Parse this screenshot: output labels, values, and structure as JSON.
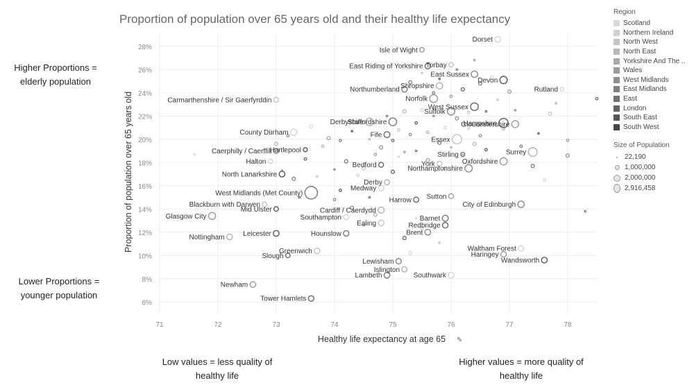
{
  "side_notes": {
    "top_left": "Higher Proportions = elderly population",
    "bottom_left": "Lower Proportions = younger population",
    "bottom_center": "Low values = less quality of healthy life",
    "bottom_right": "Higher values = more quality of healthy life"
  },
  "legend": {
    "region_title": "Region",
    "regions": [
      {
        "name": "Scotland",
        "color": "#d9d9d9"
      },
      {
        "name": "Northern Ireland",
        "color": "#d0d0d0"
      },
      {
        "name": "North West",
        "color": "#c4c4c4"
      },
      {
        "name": "North East",
        "color": "#b8b8b8"
      },
      {
        "name": "Yorkshire And The ..",
        "color": "#aaaaaa"
      },
      {
        "name": "Wales",
        "color": "#9c9c9c"
      },
      {
        "name": "West Midlands",
        "color": "#8e8e8e"
      },
      {
        "name": "East Midlands",
        "color": "#808080"
      },
      {
        "name": "East",
        "color": "#727272"
      },
      {
        "name": "London",
        "color": "#646464"
      },
      {
        "name": "South East",
        "color": "#555555"
      },
      {
        "name": "South West",
        "color": "#464646"
      }
    ],
    "size_title": "Size of Population",
    "sizes": [
      "22,190",
      "1,000,000",
      "2,000,000",
      "2,916,458"
    ]
  },
  "chart_data": {
    "type": "scatter",
    "title": "Proportion of population over 65 years old and their healthy life expectancy",
    "xlabel": "Healthy life expectancy at age 65",
    "ylabel": "Proportion of population over 65 years old",
    "xlim": [
      71,
      78.5
    ],
    "ylim": [
      5,
      29
    ],
    "x_ticks": [
      "71",
      "72",
      "73",
      "74",
      "75",
      "76",
      "77",
      "78"
    ],
    "y_ticks": [
      "6%",
      "8%",
      "10%",
      "12%",
      "14%",
      "16%",
      "18%",
      "20%",
      "22%",
      "24%",
      "26%",
      "28%"
    ],
    "grid": true,
    "labeled_points": [
      {
        "label": "Dorset",
        "x": 76.8,
        "y": 28.6,
        "size": 0.35
      },
      {
        "label": "Isle of Wight",
        "x": 75.5,
        "y": 27.7,
        "size": 0.15
      },
      {
        "label": "East Riding of Yorkshire",
        "x": 75.6,
        "y": 26.3,
        "size": 0.3
      },
      {
        "label": "Torbay",
        "x": 76.0,
        "y": 26.4,
        "size": 0.15
      },
      {
        "label": "East Sussex",
        "x": 76.4,
        "y": 25.6,
        "size": 0.5
      },
      {
        "label": "Devon",
        "x": 76.9,
        "y": 25.1,
        "size": 0.75
      },
      {
        "label": "Shropshire",
        "x": 75.8,
        "y": 24.6,
        "size": 0.5
      },
      {
        "label": "Northumberland",
        "x": 75.2,
        "y": 24.3,
        "size": 0.3
      },
      {
        "label": "Rutland",
        "x": 77.9,
        "y": 24.3,
        "size": 0.05
      },
      {
        "label": "Norfolk",
        "x": 75.7,
        "y": 23.5,
        "size": 0.9
      },
      {
        "label": "West Sussex",
        "x": 76.4,
        "y": 22.8,
        "size": 0.85
      },
      {
        "label": "Carmarthenshire / Sir Gaerfyrddin",
        "x": 73.0,
        "y": 23.4,
        "size": 0.2
      },
      {
        "label": "Suffolk",
        "x": 76.0,
        "y": 22.4,
        "size": 0.75
      },
      {
        "label": "Hampshire",
        "x": 76.9,
        "y": 21.4,
        "size": 1.35
      },
      {
        "label": "Derbyshire",
        "x": 74.6,
        "y": 21.5,
        "size": 0.8
      },
      {
        "label": "Staffordshire",
        "x": 75.0,
        "y": 21.5,
        "size": 0.85
      },
      {
        "label": "County Durham",
        "x": 73.3,
        "y": 20.6,
        "size": 0.5
      },
      {
        "label": "Gloucestershire",
        "x": 77.1,
        "y": 21.3,
        "size": 0.65
      },
      {
        "label": "Fife",
        "x": 74.9,
        "y": 20.4,
        "size": 0.4
      },
      {
        "label": "Essex",
        "x": 76.1,
        "y": 20.0,
        "size": 1.45
      },
      {
        "label": "Caerphilly / Caerffili",
        "x": 73.0,
        "y": 19.0,
        "size": 0.2
      },
      {
        "label": "Hartlepool",
        "x": 73.5,
        "y": 19.1,
        "size": 0.1
      },
      {
        "label": "Surrey",
        "x": 77.4,
        "y": 18.9,
        "size": 1.2
      },
      {
        "label": "Stirling",
        "x": 76.2,
        "y": 18.7,
        "size": 0.1
      },
      {
        "label": "Halton",
        "x": 72.9,
        "y": 18.1,
        "size": 0.15
      },
      {
        "label": "Oxfordshire",
        "x": 76.9,
        "y": 18.1,
        "size": 0.7
      },
      {
        "label": "Bedford",
        "x": 74.8,
        "y": 17.8,
        "size": 0.2
      },
      {
        "label": "York",
        "x": 75.8,
        "y": 17.9,
        "size": 0.2
      },
      {
        "label": "Northamptonshire",
        "x": 76.3,
        "y": 17.5,
        "size": 0.75
      },
      {
        "label": "North Lanarkshire",
        "x": 73.1,
        "y": 17.0,
        "size": 0.35
      },
      {
        "label": "Derby",
        "x": 74.9,
        "y": 16.3,
        "size": 0.25
      },
      {
        "label": "West Midlands (Met County)",
        "x": 73.6,
        "y": 15.4,
        "size": 3.0
      },
      {
        "label": "Medway",
        "x": 74.8,
        "y": 15.8,
        "size": 0.3
      },
      {
        "label": "Sutton",
        "x": 76.0,
        "y": 15.1,
        "size": 0.2
      },
      {
        "label": "Harrow",
        "x": 75.4,
        "y": 14.8,
        "size": 0.25
      },
      {
        "label": "Blackburn with Darwen",
        "x": 72.8,
        "y": 14.4,
        "size": 0.15
      },
      {
        "label": "City of Edinburgh",
        "x": 77.2,
        "y": 14.4,
        "size": 0.5
      },
      {
        "label": "Mid Ulster",
        "x": 73.0,
        "y": 14.0,
        "size": 0.15
      },
      {
        "label": "Cardiff / Caerdydd",
        "x": 74.8,
        "y": 13.9,
        "size": 0.4
      },
      {
        "label": "Barnet",
        "x": 75.9,
        "y": 13.2,
        "size": 0.4
      },
      {
        "label": "Southampton",
        "x": 74.2,
        "y": 13.3,
        "size": 0.25
      },
      {
        "label": "Glasgow City",
        "x": 71.9,
        "y": 13.4,
        "size": 0.65
      },
      {
        "label": "Redbridge",
        "x": 75.9,
        "y": 12.6,
        "size": 0.3
      },
      {
        "label": "Ealing",
        "x": 74.8,
        "y": 12.8,
        "size": 0.35
      },
      {
        "label": "Brent",
        "x": 75.6,
        "y": 12.0,
        "size": 0.35
      },
      {
        "label": "Leicester",
        "x": 73.0,
        "y": 11.9,
        "size": 0.35
      },
      {
        "label": "Nottingham",
        "x": 72.2,
        "y": 11.6,
        "size": 0.35
      },
      {
        "label": "Hounslow",
        "x": 74.2,
        "y": 11.9,
        "size": 0.3
      },
      {
        "label": "Waltham Forest",
        "x": 77.2,
        "y": 10.6,
        "size": 0.3
      },
      {
        "label": "Haringey",
        "x": 76.9,
        "y": 10.1,
        "size": 0.3
      },
      {
        "label": "Slough",
        "x": 73.2,
        "y": 10.0,
        "size": 0.15
      },
      {
        "label": "Greenwich",
        "x": 73.7,
        "y": 10.4,
        "size": 0.3
      },
      {
        "label": "Lewisham",
        "x": 75.1,
        "y": 9.5,
        "size": 0.3
      },
      {
        "label": "Wandsworth",
        "x": 77.6,
        "y": 9.6,
        "size": 0.35
      },
      {
        "label": "Islington",
        "x": 75.2,
        "y": 8.8,
        "size": 0.25
      },
      {
        "label": "Lambeth",
        "x": 74.9,
        "y": 8.3,
        "size": 0.35
      },
      {
        "label": "Southwark",
        "x": 76.0,
        "y": 8.3,
        "size": 0.35
      },
      {
        "label": "Newham",
        "x": 72.6,
        "y": 7.5,
        "size": 0.35
      },
      {
        "label": "Tower Hamlets",
        "x": 73.6,
        "y": 6.3,
        "size": 0.3
      }
    ],
    "other_points": [
      [
        71.6,
        18.7
      ],
      [
        72.9,
        20.7
      ],
      [
        73.0,
        19.6
      ],
      [
        73.1,
        17.3
      ],
      [
        73.2,
        20.3
      ],
      [
        73.3,
        16.6
      ],
      [
        73.4,
        15.0
      ],
      [
        73.5,
        18.3
      ],
      [
        73.6,
        21.1
      ],
      [
        73.7,
        16.8
      ],
      [
        73.8,
        19.4
      ],
      [
        73.9,
        20.1
      ],
      [
        74.0,
        17.4
      ],
      [
        74.1,
        19.9
      ],
      [
        74.2,
        18.1
      ],
      [
        74.3,
        20.7
      ],
      [
        74.4,
        16.9
      ],
      [
        74.5,
        17.5
      ],
      [
        74.6,
        20.0
      ],
      [
        74.7,
        18.7
      ],
      [
        74.8,
        19.3
      ],
      [
        74.9,
        22.0
      ],
      [
        75.0,
        19.9
      ],
      [
        75.0,
        17.2
      ],
      [
        75.1,
        18.5
      ],
      [
        75.1,
        20.8
      ],
      [
        75.2,
        22.4
      ],
      [
        75.2,
        18.9
      ],
      [
        75.3,
        20.4
      ],
      [
        75.3,
        24.9
      ],
      [
        75.4,
        19.0
      ],
      [
        75.4,
        21.4
      ],
      [
        75.5,
        22.5
      ],
      [
        75.5,
        25.7
      ],
      [
        75.6,
        20.6
      ],
      [
        75.6,
        18.2
      ],
      [
        75.7,
        22.0
      ],
      [
        75.7,
        24.0
      ],
      [
        75.8,
        19.7
      ],
      [
        75.8,
        25.2
      ],
      [
        75.9,
        21.0
      ],
      [
        75.9,
        17.5
      ],
      [
        76.0,
        19.3
      ],
      [
        76.0,
        23.7
      ],
      [
        76.1,
        21.8
      ],
      [
        76.1,
        26.0
      ],
      [
        76.2,
        18.6
      ],
      [
        76.2,
        24.3
      ],
      [
        76.3,
        20.9
      ],
      [
        76.3,
        22.3
      ],
      [
        76.4,
        19.6
      ],
      [
        76.4,
        26.8
      ],
      [
        76.5,
        20.3
      ],
      [
        76.5,
        24.8
      ],
      [
        76.6,
        22.4
      ],
      [
        76.6,
        19.1
      ],
      [
        76.7,
        25.3
      ],
      [
        76.8,
        23.4
      ],
      [
        76.9,
        20.9
      ],
      [
        77.0,
        24.1
      ],
      [
        77.1,
        22.5
      ],
      [
        77.2,
        19.4
      ],
      [
        77.4,
        17.7
      ],
      [
        77.5,
        20.5
      ],
      [
        77.6,
        16.5
      ],
      [
        77.7,
        22.2
      ],
      [
        77.8,
        23.1
      ],
      [
        78.0,
        19.9
      ],
      [
        78.0,
        18.6
      ],
      [
        78.3,
        13.8
      ],
      [
        78.5,
        23.5
      ],
      [
        75.2,
        11.5
      ],
      [
        75.4,
        13.2
      ],
      [
        75.5,
        12.3
      ],
      [
        74.7,
        13.5
      ],
      [
        74.5,
        12.6
      ],
      [
        74.0,
        14.8
      ],
      [
        74.3,
        14.1
      ],
      [
        74.6,
        15.0
      ],
      [
        74.1,
        15.6
      ],
      [
        75.3,
        10.2
      ],
      [
        75.8,
        11.1
      ]
    ]
  }
}
